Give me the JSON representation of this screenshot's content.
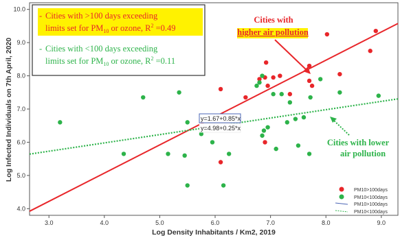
{
  "chart_data": {
    "type": "scatter",
    "xlabel": "Log Density Inhabitants / Km2, 2019",
    "ylabel": "Log Infected Individuals on 7th April, 2020",
    "xlim": [
      2.65,
      9.3
    ],
    "ylim": [
      3.8,
      10.2
    ],
    "x_ticks": [
      3.0,
      4.0,
      5.0,
      6.0,
      7.0,
      8.0,
      9.0
    ],
    "y_ticks": [
      4.0,
      5.0,
      6.0,
      7.0,
      8.0,
      9.0,
      10.0
    ],
    "x_tick_labels": [
      "3.0",
      "4.0",
      "5.0",
      "6.0",
      "7.0",
      "8.0",
      "9.0"
    ],
    "y_tick_labels": [
      "4.0",
      "5.0",
      "6.0",
      "7.0",
      "8.0",
      "9.0",
      "10.0"
    ],
    "grid": false,
    "legend_position": "bottom-right",
    "series": [
      {
        "name": "PM10>100days",
        "color": "#e8262a",
        "points": [
          [
            6.1,
            5.4
          ],
          [
            6.1,
            7.6
          ],
          [
            6.55,
            7.35
          ],
          [
            6.8,
            7.9
          ],
          [
            6.9,
            7.95
          ],
          [
            6.9,
            6.0
          ],
          [
            6.92,
            8.4
          ],
          [
            6.95,
            7.7
          ],
          [
            7.05,
            7.95
          ],
          [
            7.17,
            8.0
          ],
          [
            7.35,
            7.45
          ],
          [
            7.7,
            7.85
          ],
          [
            7.7,
            8.3
          ],
          [
            7.75,
            7.7
          ],
          [
            8.02,
            9.25
          ],
          [
            8.25,
            8.05
          ],
          [
            8.8,
            8.75
          ],
          [
            8.9,
            9.35
          ]
        ],
        "fit": {
          "intercept": 1.67,
          "slope": 0.85,
          "style": "solid",
          "color": "#e8262a"
        }
      },
      {
        "name": "PM10<100days",
        "color": "#2db34a",
        "points": [
          [
            3.2,
            6.6
          ],
          [
            4.35,
            5.65
          ],
          [
            4.7,
            7.35
          ],
          [
            5.15,
            5.65
          ],
          [
            5.35,
            7.5
          ],
          [
            5.45,
            5.6
          ],
          [
            5.5,
            4.7
          ],
          [
            5.5,
            6.6
          ],
          [
            5.75,
            6.25
          ],
          [
            5.95,
            6.0
          ],
          [
            6.05,
            6.5
          ],
          [
            6.15,
            4.7
          ],
          [
            6.25,
            5.65
          ],
          [
            6.35,
            6.5
          ],
          [
            6.75,
            7.7
          ],
          [
            6.8,
            7.8
          ],
          [
            6.85,
            8.0
          ],
          [
            6.85,
            6.2
          ],
          [
            6.88,
            6.35
          ],
          [
            6.95,
            6.45
          ],
          [
            7.05,
            7.45
          ],
          [
            7.1,
            5.8
          ],
          [
            7.2,
            7.45
          ],
          [
            7.3,
            6.6
          ],
          [
            7.35,
            7.2
          ],
          [
            7.45,
            6.7
          ],
          [
            7.5,
            5.9
          ],
          [
            7.6,
            6.75
          ],
          [
            7.7,
            5.65
          ],
          [
            7.72,
            7.35
          ],
          [
            7.9,
            7.9
          ],
          [
            8.25,
            7.5
          ],
          [
            8.95,
            7.4
          ]
        ],
        "fit": {
          "intercept": 4.98,
          "slope": 0.25,
          "style": "dotted",
          "color": "#2db34a"
        }
      }
    ],
    "legend_entries": [
      "PM10>100days",
      "PM10<100days",
      "PM10>100days",
      "PM10<100days"
    ],
    "equation_labels": [
      "y=1.67+0.85*x",
      "y=4.98+0.25*x"
    ],
    "info_box": {
      "line1_a": "Cities with >100 days exceeding",
      "line1_b": "limits set for PM",
      "line1_sub": "10",
      "line1_c": " or ozone, R",
      "line1_sup": "2",
      "line1_d": " =0.49",
      "line2_a": "Cities with <100 days exceeding",
      "line2_b": "limits set for PM",
      "line2_sub": "10",
      "line2_c": " or ozone, R",
      "line2_sup": "2",
      "line2_d": " =0.11",
      "bullet": "-"
    },
    "annotations": {
      "higher_line1": "Cities with",
      "higher_line2": "higher air pollution",
      "lower_line1": "Cities with lower",
      "lower_line2": "air pollution"
    },
    "colors": {
      "red": "#e8262a",
      "green": "#2db34a",
      "highlight": "#fff200",
      "blue": "#4a64b4"
    }
  }
}
